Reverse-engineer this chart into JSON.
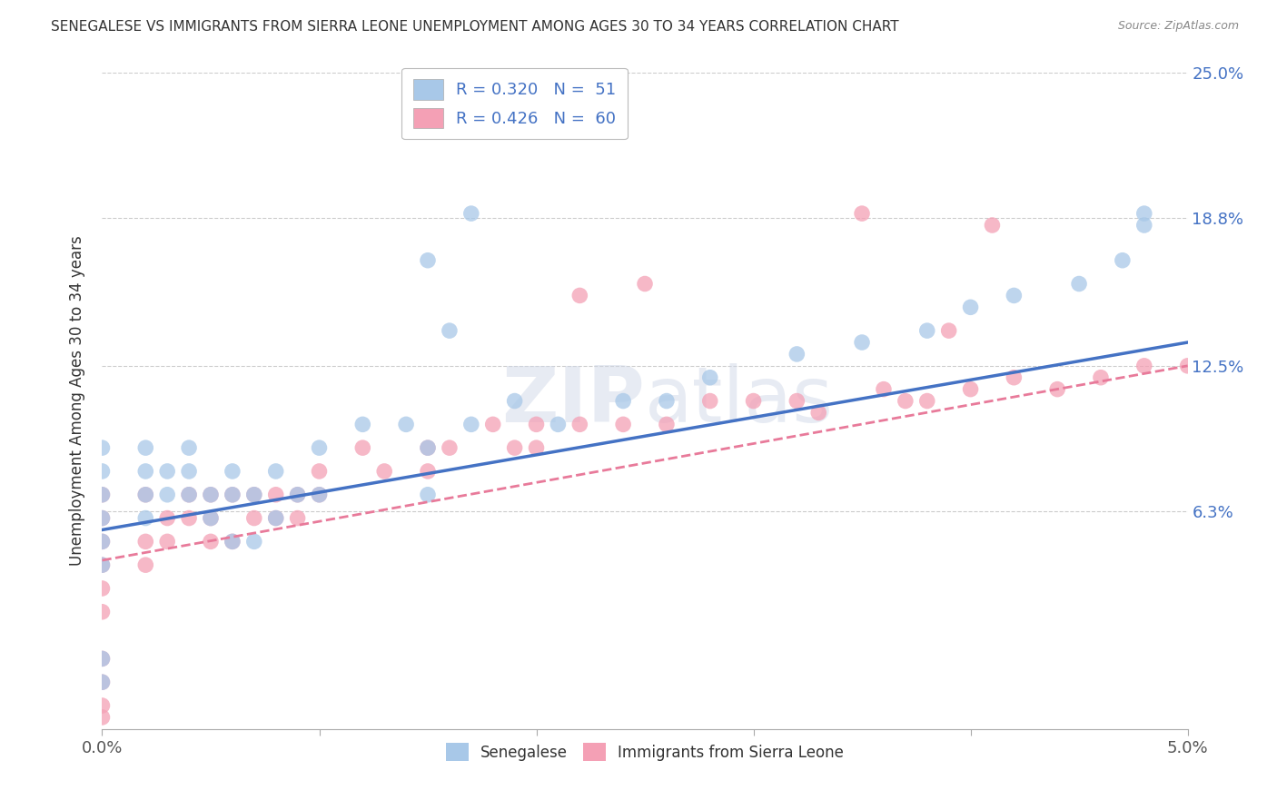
{
  "title": "SENEGALESE VS IMMIGRANTS FROM SIERRA LEONE UNEMPLOYMENT AMONG AGES 30 TO 34 YEARS CORRELATION CHART",
  "source": "Source: ZipAtlas.com",
  "ylabel": "Unemployment Among Ages 30 to 34 years",
  "xlim": [
    0.0,
    0.05
  ],
  "ylim": [
    -0.03,
    0.25
  ],
  "xticks": [
    0.0,
    0.01,
    0.02,
    0.03,
    0.04,
    0.05
  ],
  "xtick_labels": [
    "0.0%",
    "",
    "",
    "",
    "",
    "5.0%"
  ],
  "ytick_labels_right": [
    "6.3%",
    "12.5%",
    "18.8%",
    "25.0%"
  ],
  "ytick_values_right": [
    0.063,
    0.125,
    0.188,
    0.25
  ],
  "series1_color": "#a8c8e8",
  "series2_color": "#f4a0b5",
  "trendline1_color": "#4472c4",
  "trendline2_color": "#e87a9a",
  "background_color": "#ffffff",
  "watermark": "ZIPatlas",
  "senegalese_x": [
    0.0,
    0.0,
    0.0,
    0.0,
    0.0,
    0.0,
    0.0,
    0.0,
    0.002,
    0.002,
    0.002,
    0.002,
    0.003,
    0.003,
    0.004,
    0.004,
    0.004,
    0.005,
    0.005,
    0.006,
    0.006,
    0.006,
    0.007,
    0.007,
    0.008,
    0.008,
    0.009,
    0.01,
    0.01,
    0.012,
    0.014,
    0.015,
    0.015,
    0.017,
    0.019,
    0.021,
    0.024,
    0.026,
    0.028,
    0.032,
    0.035,
    0.038,
    0.04,
    0.042,
    0.045,
    0.047,
    0.048,
    0.048,
    0.015,
    0.016,
    0.017
  ],
  "senegalese_y": [
    0.09,
    0.08,
    0.07,
    0.06,
    0.05,
    0.04,
    0.0,
    -0.01,
    0.09,
    0.08,
    0.07,
    0.06,
    0.08,
    0.07,
    0.09,
    0.08,
    0.07,
    0.07,
    0.06,
    0.08,
    0.07,
    0.05,
    0.07,
    0.05,
    0.08,
    0.06,
    0.07,
    0.09,
    0.07,
    0.1,
    0.1,
    0.09,
    0.07,
    0.1,
    0.11,
    0.1,
    0.11,
    0.11,
    0.12,
    0.13,
    0.135,
    0.14,
    0.15,
    0.155,
    0.16,
    0.17,
    0.185,
    0.19,
    0.17,
    0.14,
    0.19
  ],
  "sierraleone_x": [
    0.0,
    0.0,
    0.0,
    0.0,
    0.0,
    0.0,
    0.0,
    0.0,
    0.0,
    0.0,
    0.002,
    0.002,
    0.002,
    0.003,
    0.003,
    0.004,
    0.004,
    0.005,
    0.005,
    0.005,
    0.006,
    0.006,
    0.007,
    0.007,
    0.008,
    0.008,
    0.009,
    0.009,
    0.01,
    0.01,
    0.012,
    0.013,
    0.015,
    0.015,
    0.016,
    0.018,
    0.019,
    0.02,
    0.02,
    0.022,
    0.024,
    0.026,
    0.028,
    0.03,
    0.032,
    0.033,
    0.036,
    0.038,
    0.04,
    0.042,
    0.044,
    0.046,
    0.048,
    0.05,
    0.035,
    0.037,
    0.039,
    0.041,
    0.022,
    0.025
  ],
  "sierraleone_y": [
    0.07,
    0.06,
    0.05,
    0.04,
    0.03,
    0.02,
    0.0,
    -0.01,
    -0.02,
    -0.025,
    0.07,
    0.05,
    0.04,
    0.06,
    0.05,
    0.07,
    0.06,
    0.07,
    0.06,
    0.05,
    0.07,
    0.05,
    0.07,
    0.06,
    0.07,
    0.06,
    0.07,
    0.06,
    0.08,
    0.07,
    0.09,
    0.08,
    0.09,
    0.08,
    0.09,
    0.1,
    0.09,
    0.1,
    0.09,
    0.1,
    0.1,
    0.1,
    0.11,
    0.11,
    0.11,
    0.105,
    0.115,
    0.11,
    0.115,
    0.12,
    0.115,
    0.12,
    0.125,
    0.125,
    0.19,
    0.11,
    0.14,
    0.185,
    0.155,
    0.16
  ]
}
